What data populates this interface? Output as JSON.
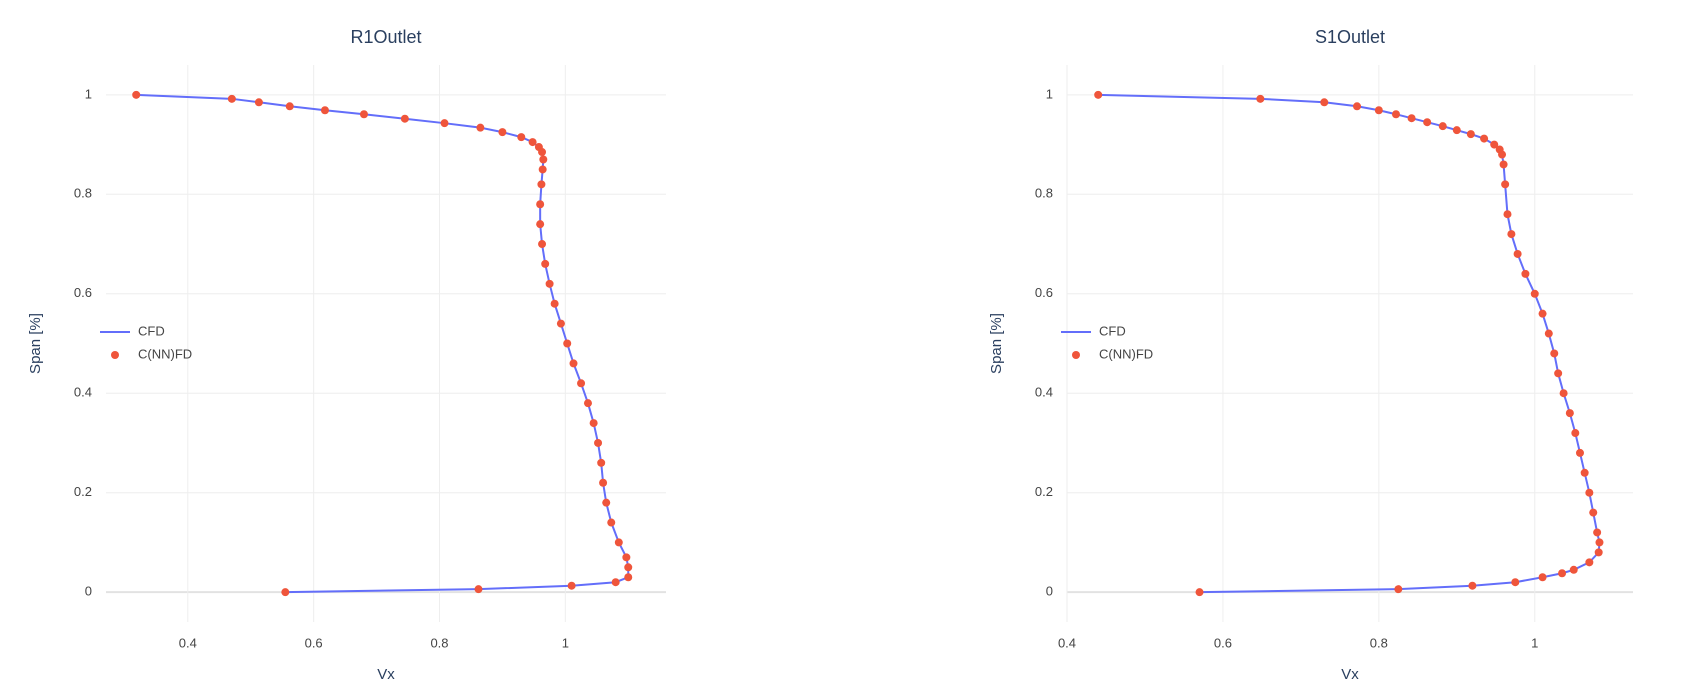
{
  "chart_data": [
    {
      "type": "scatter",
      "title": "R1Outlet",
      "x_label": "Vx",
      "y_label": "Span [%]",
      "x": [
        0.318,
        0.47,
        0.513,
        0.562,
        0.618,
        0.68,
        0.745,
        0.808,
        0.865,
        0.9,
        0.93,
        0.948,
        0.958,
        0.963,
        0.965,
        0.964,
        0.962,
        0.96,
        0.96,
        0.963,
        0.968,
        0.975,
        0.983,
        0.993,
        1.003,
        1.013,
        1.025,
        1.036,
        1.045,
        1.052,
        1.057,
        1.06,
        1.065,
        1.073,
        1.085,
        1.097,
        1.1,
        1.1,
        1.08,
        1.01,
        0.862,
        0.555
      ],
      "series": [
        {
          "name": "CFD",
          "mode": "lines",
          "color": "#636efa",
          "values": [
            1,
            0.992,
            0.985,
            0.977,
            0.969,
            0.961,
            0.952,
            0.943,
            0.934,
            0.925,
            0.915,
            0.905,
            0.895,
            0.885,
            0.87,
            0.85,
            0.82,
            0.78,
            0.74,
            0.7,
            0.66,
            0.62,
            0.58,
            0.54,
            0.5,
            0.46,
            0.42,
            0.38,
            0.34,
            0.3,
            0.26,
            0.22,
            0.18,
            0.14,
            0.1,
            0.07,
            0.05,
            0.03,
            0.02,
            0.013,
            0.006,
            0
          ]
        },
        {
          "name": "C(NN)FD",
          "mode": "markers",
          "color": "#ef553b",
          "values": [
            1,
            0.992,
            0.985,
            0.977,
            0.969,
            0.961,
            0.952,
            0.943,
            0.934,
            0.925,
            0.915,
            0.905,
            0.895,
            0.885,
            0.87,
            0.85,
            0.82,
            0.78,
            0.74,
            0.7,
            0.66,
            0.62,
            0.58,
            0.54,
            0.5,
            0.46,
            0.42,
            0.38,
            0.34,
            0.3,
            0.26,
            0.22,
            0.18,
            0.14,
            0.1,
            0.07,
            0.05,
            0.03,
            0.02,
            0.013,
            0.006,
            0
          ]
        }
      ],
      "xlim": [
        0.27,
        1.16
      ],
      "xticks": [
        0.4,
        0.6,
        0.8,
        1
      ],
      "ylim": [
        -0.06,
        1.06
      ],
      "yticks": [
        0,
        0.2,
        0.4,
        0.6,
        0.8,
        1
      ],
      "grid": true,
      "legend": "left"
    },
    {
      "type": "scatter",
      "title": "S1Outlet",
      "x_label": "Vx",
      "y_label": "Span [%]",
      "x": [
        0.44,
        0.648,
        0.73,
        0.772,
        0.8,
        0.822,
        0.842,
        0.862,
        0.882,
        0.9,
        0.918,
        0.935,
        0.948,
        0.955,
        0.958,
        0.96,
        0.962,
        0.965,
        0.97,
        0.978,
        0.988,
        1.0,
        1.01,
        1.018,
        1.025,
        1.03,
        1.037,
        1.045,
        1.052,
        1.058,
        1.064,
        1.07,
        1.075,
        1.08,
        1.083,
        1.082,
        1.07,
        1.05,
        1.035,
        1.01,
        0.975,
        0.92,
        0.825,
        0.57
      ],
      "series": [
        {
          "name": "CFD",
          "mode": "lines",
          "color": "#636efa",
          "values": [
            1,
            0.992,
            0.985,
            0.977,
            0.969,
            0.961,
            0.953,
            0.945,
            0.937,
            0.929,
            0.921,
            0.912,
            0.9,
            0.89,
            0.88,
            0.86,
            0.82,
            0.76,
            0.72,
            0.68,
            0.64,
            0.6,
            0.56,
            0.52,
            0.48,
            0.44,
            0.4,
            0.36,
            0.32,
            0.28,
            0.24,
            0.2,
            0.16,
            0.12,
            0.1,
            0.08,
            0.06,
            0.045,
            0.038,
            0.03,
            0.02,
            0.013,
            0.006,
            0
          ]
        },
        {
          "name": "C(NN)FD",
          "mode": "markers",
          "color": "#ef553b",
          "values": [
            1,
            0.992,
            0.985,
            0.977,
            0.969,
            0.961,
            0.953,
            0.945,
            0.937,
            0.929,
            0.921,
            0.912,
            0.9,
            0.89,
            0.88,
            0.86,
            0.82,
            0.76,
            0.72,
            0.68,
            0.64,
            0.6,
            0.56,
            0.52,
            0.48,
            0.44,
            0.4,
            0.36,
            0.32,
            0.28,
            0.24,
            0.2,
            0.16,
            0.12,
            0.1,
            0.08,
            0.06,
            0.045,
            0.038,
            0.03,
            0.02,
            0.013,
            0.006,
            0
          ]
        }
      ],
      "xlim": [
        0.4,
        1.126
      ],
      "xticks": [
        0.4,
        0.6,
        0.8,
        1
      ],
      "ylim": [
        -0.06,
        1.06
      ],
      "yticks": [
        0,
        0.2,
        0.4,
        0.6,
        0.8,
        1
      ],
      "grid": true,
      "legend": "left"
    }
  ]
}
